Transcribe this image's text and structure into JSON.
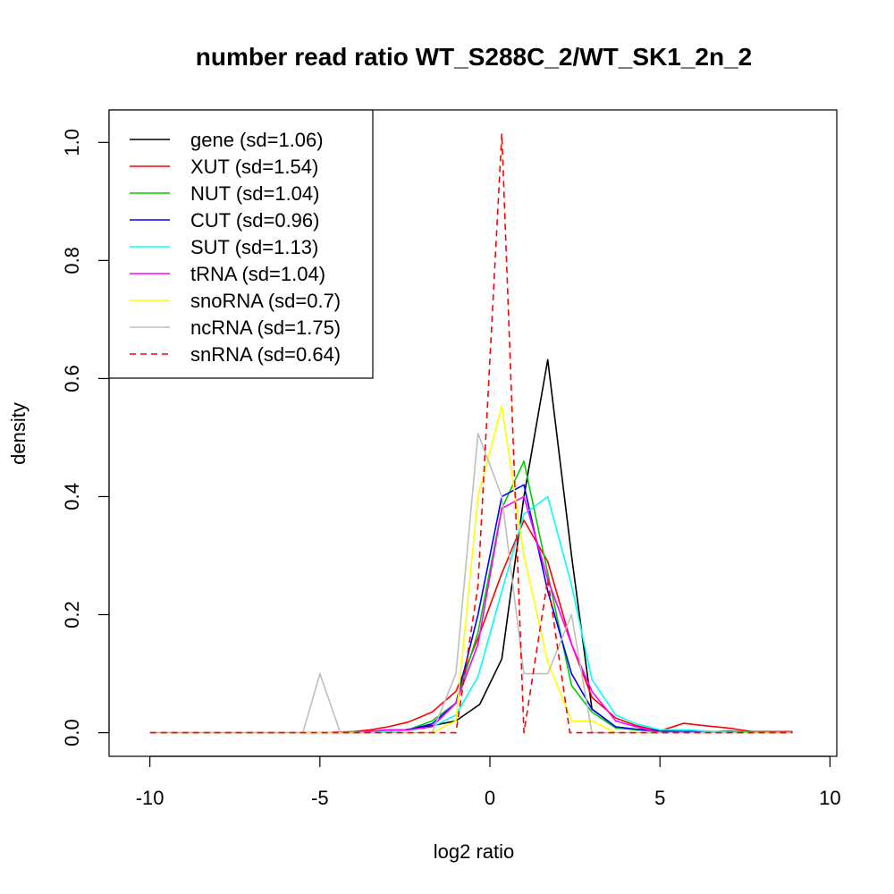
{
  "chart_data": {
    "type": "line",
    "title": "number read ratio WT_S288C_2/WT_SK1_2n_2",
    "xlabel": "log2 ratio",
    "ylabel": "density",
    "xlim": [
      -11.2,
      10.2
    ],
    "ylim": [
      -0.04,
      1.055
    ],
    "xticks": [
      -10,
      -5,
      0,
      5,
      10
    ],
    "xtick_labels": [
      "-10",
      "-5",
      "0",
      "5",
      "10"
    ],
    "yticks": [
      0,
      0.2,
      0.4,
      0.6,
      0.8,
      1.0
    ],
    "ytick_labels": [
      "0.0",
      "0.2",
      "0.4",
      "0.6",
      "0.8",
      "1.0"
    ],
    "grid": false,
    "legend_position": "top-left",
    "series": [
      {
        "name": "gene (sd=1.06)",
        "color": "#000000",
        "dash": "solid",
        "x": [
          -10,
          -9,
          -8,
          -7,
          -6,
          -5,
          -4,
          -3,
          -2.5,
          -1.7,
          -1,
          -0.3,
          0.35,
          1,
          1.7,
          2.4,
          3,
          3.7,
          4.3,
          5,
          5.7,
          6.3,
          7,
          7.7,
          8.9
        ],
        "y": [
          0,
          0,
          0,
          0,
          0,
          0,
          0,
          0.002,
          0.005,
          0.012,
          0.02,
          0.048,
          0.125,
          0.4,
          0.632,
          0.3,
          0.04,
          0.01,
          0.005,
          0.002,
          0.002,
          0.002,
          0.001,
          0,
          0
        ]
      },
      {
        "name": "XUT (sd=1.54)",
        "color": "#ff0000",
        "dash": "solid",
        "x": [
          -10,
          -9,
          -8,
          -7,
          -6,
          -5,
          -4,
          -3.5,
          -3,
          -2.4,
          -1.7,
          -1,
          -0.35,
          0.35,
          1,
          1.7,
          2.4,
          3,
          3.7,
          4.3,
          5,
          5.7,
          6.3,
          7,
          7.7,
          8.9
        ],
        "y": [
          0,
          0,
          0,
          0,
          0,
          0,
          0.002,
          0.005,
          0.01,
          0.018,
          0.035,
          0.07,
          0.16,
          0.27,
          0.36,
          0.29,
          0.15,
          0.06,
          0.025,
          0.012,
          0.003,
          0.016,
          0.012,
          0.008,
          0.002,
          0.002
        ]
      },
      {
        "name": "NUT (sd=1.04)",
        "color": "#00cd00",
        "dash": "solid",
        "x": [
          -10,
          -9,
          -8,
          -7,
          -6,
          -5,
          -4,
          -3,
          -2.4,
          -1.7,
          -1,
          -0.35,
          0.35,
          1,
          1.7,
          2.4,
          3,
          3.7,
          4.3,
          5,
          5.7,
          6.3,
          7,
          7.7,
          8.9
        ],
        "y": [
          0,
          0,
          0,
          0,
          0,
          0,
          0.001,
          0.002,
          0.005,
          0.02,
          0.05,
          0.17,
          0.38,
          0.46,
          0.27,
          0.08,
          0.035,
          0.008,
          0.005,
          0.002,
          0.001,
          0.001,
          0.003,
          0.001,
          0
        ]
      },
      {
        "name": "CUT (sd=0.96)",
        "color": "#0000ff",
        "dash": "solid",
        "x": [
          -10,
          -9,
          -8,
          -7,
          -6,
          -5,
          -4,
          -3,
          -2.4,
          -1.7,
          -1,
          -0.35,
          0.35,
          1,
          1.7,
          2.4,
          3,
          3.7,
          4.3,
          5,
          5.7,
          6.3,
          7,
          7.7,
          8.9
        ],
        "y": [
          0,
          0,
          0,
          0,
          0,
          0,
          0,
          0.002,
          0.005,
          0.015,
          0.05,
          0.2,
          0.4,
          0.42,
          0.24,
          0.1,
          0.04,
          0.01,
          0.006,
          0.003,
          0.002,
          0.001,
          0.001,
          0,
          0
        ]
      },
      {
        "name": "SUT (sd=1.13)",
        "color": "#00ffff",
        "dash": "solid",
        "x": [
          -10,
          -9,
          -8,
          -7,
          -6,
          -5,
          -4,
          -3,
          -2.4,
          -1.7,
          -1,
          -0.35,
          0.35,
          1,
          1.7,
          2.4,
          3,
          3.7,
          4.3,
          5,
          5.7,
          6.3,
          7,
          7.7,
          8.9
        ],
        "y": [
          0,
          0,
          0,
          0,
          0,
          0,
          0,
          0.002,
          0.004,
          0.01,
          0.03,
          0.095,
          0.24,
          0.37,
          0.4,
          0.25,
          0.09,
          0.03,
          0.015,
          0.005,
          0.005,
          0.003,
          0.001,
          0,
          0
        ]
      },
      {
        "name": "tRNA (sd=1.04)",
        "color": "#ff00ff",
        "dash": "solid",
        "x": [
          -10,
          -9,
          -8,
          -7,
          -6,
          -5,
          -4,
          -3,
          -2.4,
          -1.7,
          -1,
          -0.35,
          0.35,
          1,
          1.7,
          2.4,
          3,
          3.7,
          4.3,
          5,
          5.7,
          6.3,
          7,
          7.7,
          8.9
        ],
        "y": [
          0,
          0,
          0,
          0,
          0,
          0,
          0,
          0.005,
          0.005,
          0.01,
          0.05,
          0.15,
          0.38,
          0.4,
          0.26,
          0.15,
          0.07,
          0.02,
          0.01,
          0,
          0,
          0,
          0,
          0,
          0
        ]
      },
      {
        "name": "snoRNA (sd=0.7)",
        "color": "#ffff00",
        "dash": "solid",
        "x": [
          -10,
          -9,
          -8,
          -7,
          -6,
          -5,
          -4,
          -3,
          -2.4,
          -1.7,
          -1,
          -0.35,
          0.35,
          1,
          1.7,
          2.4,
          3,
          3.7,
          4.3,
          5,
          5.7,
          6.3,
          7,
          7.7,
          8.9
        ],
        "y": [
          0,
          0,
          0,
          0,
          0,
          0,
          0,
          0,
          0,
          0,
          0.02,
          0.4,
          0.553,
          0.3,
          0.12,
          0.02,
          0.02,
          0,
          0,
          0,
          0,
          0,
          0,
          0,
          0
        ]
      },
      {
        "name": "ncRNA (sd=1.75)",
        "color": "#bebebe",
        "dash": "solid",
        "x": [
          -10,
          -9,
          -8,
          -7,
          -6,
          -5.5,
          -5,
          -4.4,
          -3,
          -2.4,
          -1.7,
          -1,
          -0.35,
          0.35,
          1,
          1.7,
          2.4,
          3,
          3.7,
          4.3,
          5,
          5.7,
          6.3,
          7,
          7.7,
          8.9
        ],
        "y": [
          0,
          0,
          0,
          0,
          0,
          0,
          0.1,
          0,
          0,
          0,
          0,
          0.1,
          0.507,
          0.4,
          0.1,
          0.1,
          0.2,
          0,
          0,
          0,
          0,
          0,
          0,
          0,
          0,
          0
        ]
      },
      {
        "name": "snRNA (sd=0.64)",
        "color": "#ff0000",
        "dash": "dashed",
        "x": [
          -10,
          -9,
          -8,
          -7,
          -6,
          -5,
          -4,
          -3,
          -2,
          -1.7,
          -1,
          -0.35,
          0.35,
          1,
          1.7,
          2.35,
          3,
          3.7,
          4.3,
          5,
          5.7,
          6.3,
          7,
          7.7,
          8.9
        ],
        "y": [
          0,
          0,
          0,
          0,
          0,
          0,
          0,
          0,
          0,
          0,
          0,
          0.25,
          1.015,
          0,
          0.26,
          0,
          0,
          0,
          0,
          0,
          0,
          0,
          0,
          0,
          0
        ]
      }
    ]
  }
}
